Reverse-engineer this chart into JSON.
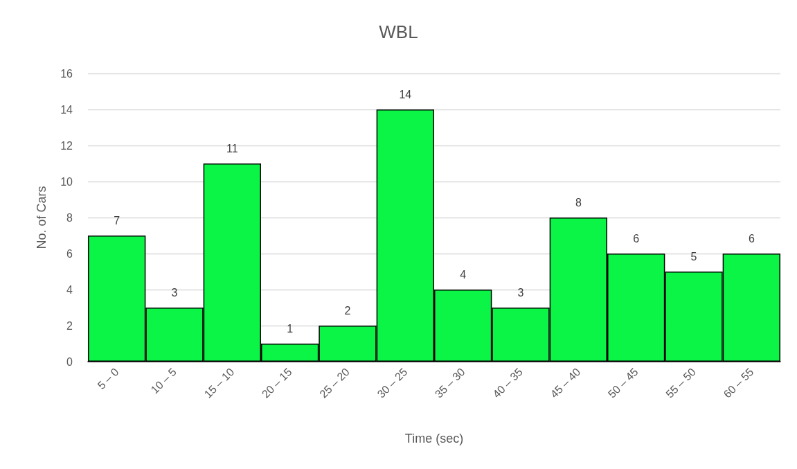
{
  "chart_data": {
    "type": "bar",
    "title": "WBL",
    "xlabel": "Time (sec)",
    "ylabel": "No. of Cars",
    "categories": [
      "5 – 0",
      "10 – 5",
      "15 – 10",
      "20 – 15",
      "25 – 20",
      "30 – 25",
      "35 – 30",
      "40 – 35",
      "45 – 40",
      "50 – 45",
      "55 – 50",
      "60 – 55"
    ],
    "values": [
      7,
      3,
      11,
      1,
      2,
      14,
      4,
      3,
      8,
      6,
      5,
      6
    ],
    "color": "#0af546",
    "ylim": [
      0,
      16
    ],
    "yticks": [
      0,
      2,
      4,
      6,
      8,
      10,
      12,
      14,
      16
    ],
    "grid": "y",
    "data_labels": true
  }
}
